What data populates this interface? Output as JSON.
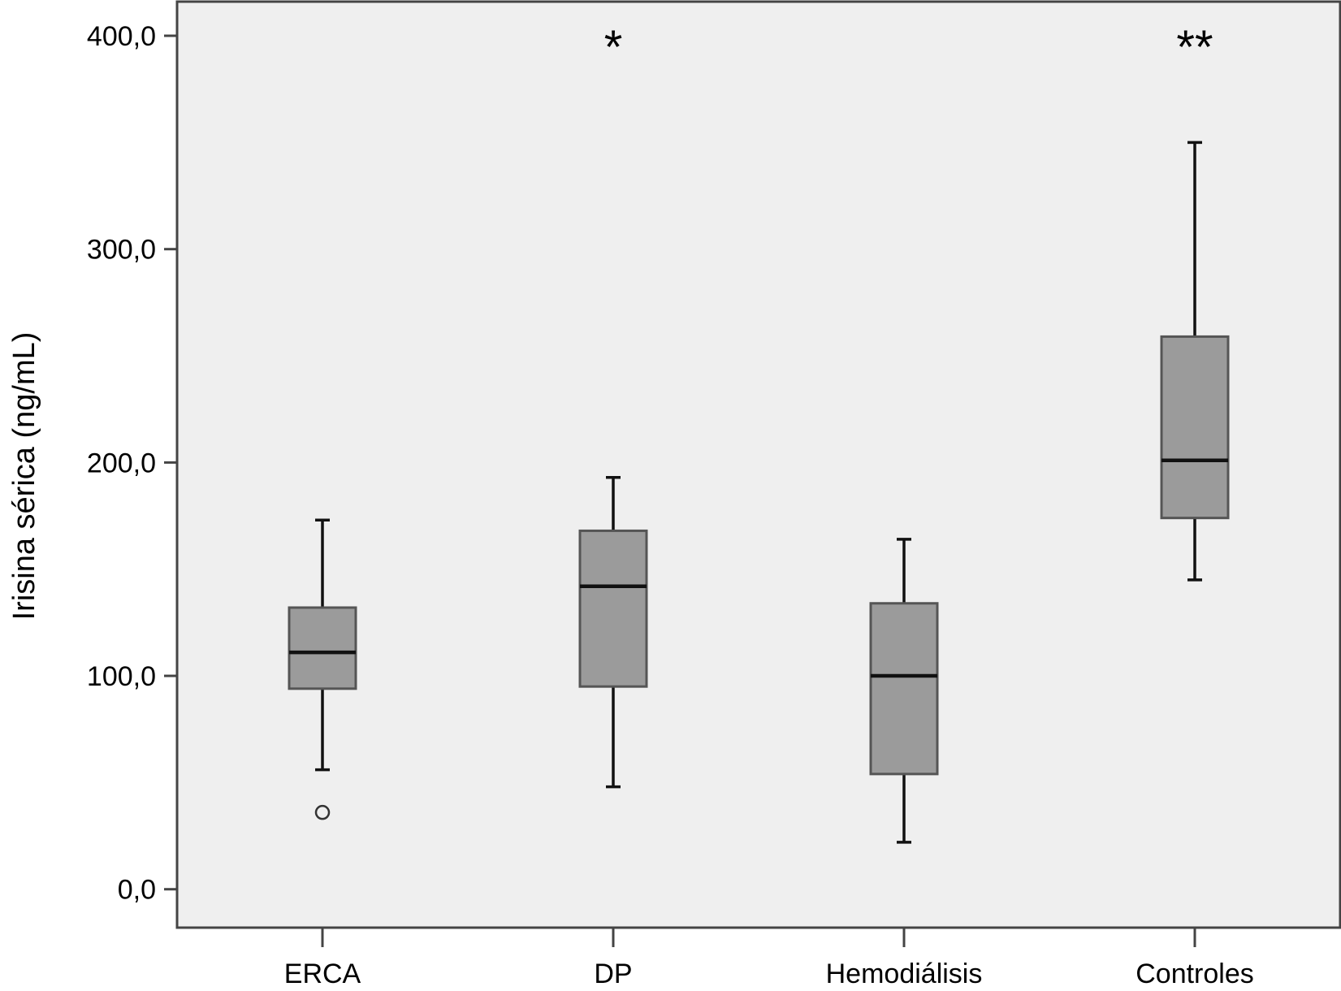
{
  "chart_data": {
    "type": "boxplot",
    "title": "",
    "xlabel": "",
    "ylabel": "Irisina sérica (ng/mL)",
    "ylim": [
      -18,
      416
    ],
    "yticks": [
      {
        "value": 0,
        "label": "0,0"
      },
      {
        "value": 100,
        "label": "100,0"
      },
      {
        "value": 200,
        "label": "200,0"
      },
      {
        "value": 300,
        "label": "300,0"
      },
      {
        "value": 400,
        "label": "400,0"
      }
    ],
    "grid": false,
    "legend": "none",
    "categories": [
      "ERCA",
      "DP",
      "Hemodiálisis",
      "Controles"
    ],
    "boxes": [
      {
        "category": "ERCA",
        "whisker_low": 56,
        "q1": 94,
        "median": 111,
        "q3": 132,
        "whisker_high": 173,
        "outliers": [
          36
        ],
        "annotation": ""
      },
      {
        "category": "DP",
        "whisker_low": 48,
        "q1": 95,
        "median": 142,
        "q3": 168,
        "whisker_high": 193,
        "outliers": [],
        "annotation": "*"
      },
      {
        "category": "Hemodiálisis",
        "whisker_low": 22,
        "q1": 54,
        "median": 100,
        "q3": 134,
        "whisker_high": 164,
        "outliers": [],
        "annotation": ""
      },
      {
        "category": "Controles",
        "whisker_low": 145,
        "q1": 174,
        "median": 201,
        "q3": 259,
        "whisker_high": 350,
        "outliers": [],
        "annotation": "**"
      }
    ],
    "colors": {
      "plot_background": "#efefef",
      "box_fill": "#9b9b9b",
      "box_stroke": "#555555",
      "line": "#111111",
      "frame": "#444444"
    }
  }
}
